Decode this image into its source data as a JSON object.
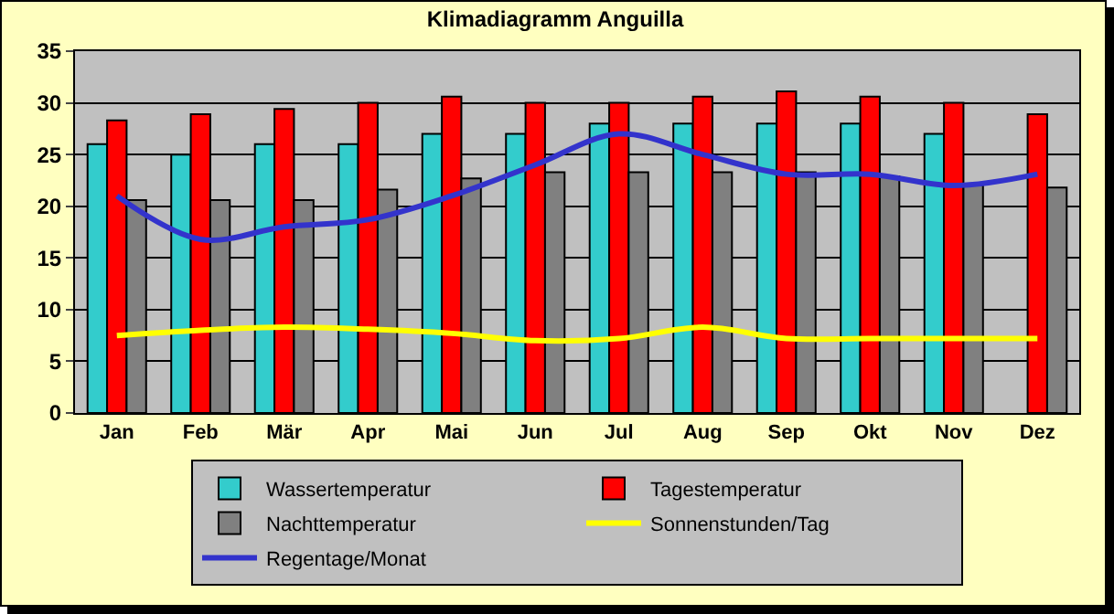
{
  "chart_data": {
    "type": "bar",
    "title": "Klimadiagramm Anguilla",
    "categories": [
      "Jan",
      "Feb",
      "Mär",
      "Apr",
      "Mai",
      "Jun",
      "Jul",
      "Aug",
      "Sep",
      "Okt",
      "Nov",
      "Dez"
    ],
    "series": [
      {
        "name": "Wassertemperatur",
        "color": "#33cccc",
        "values": [
          26,
          25,
          26,
          26,
          27,
          27,
          28,
          28,
          28,
          28,
          27,
          null
        ]
      },
      {
        "name": "Tagestemperatur",
        "color": "#ff0000",
        "values": [
          28.3,
          28.9,
          29.4,
          30,
          30.6,
          30,
          30,
          30.6,
          31.1,
          30.6,
          30,
          28.9
        ]
      },
      {
        "name": "Nachttemperatur",
        "color": "#808080",
        "values": [
          20.6,
          20.6,
          20.6,
          21.6,
          22.7,
          23.3,
          23.3,
          23.3,
          23.3,
          22.9,
          22,
          21.8
        ]
      },
      {
        "name": "Sonnenstunden/Tag",
        "type": "line",
        "color": "#ffff00",
        "values": [
          7.5,
          8,
          8.3,
          8.1,
          7.7,
          7,
          7.2,
          8.3,
          7.2,
          7.2,
          7.2,
          7.2
        ]
      },
      {
        "name": "Regentage/Monat",
        "type": "line",
        "color": "#3333cc",
        "values": [
          21,
          16.8,
          18,
          18.7,
          21,
          24,
          27,
          25,
          23.1,
          23.1,
          22,
          23.1
        ]
      }
    ],
    "ylim": [
      0,
      35
    ],
    "yticks": [
      0,
      5,
      10,
      15,
      20,
      25,
      30,
      35
    ],
    "grid": "y",
    "legend": "bottom",
    "marker": "none",
    "line_style": "solid"
  }
}
